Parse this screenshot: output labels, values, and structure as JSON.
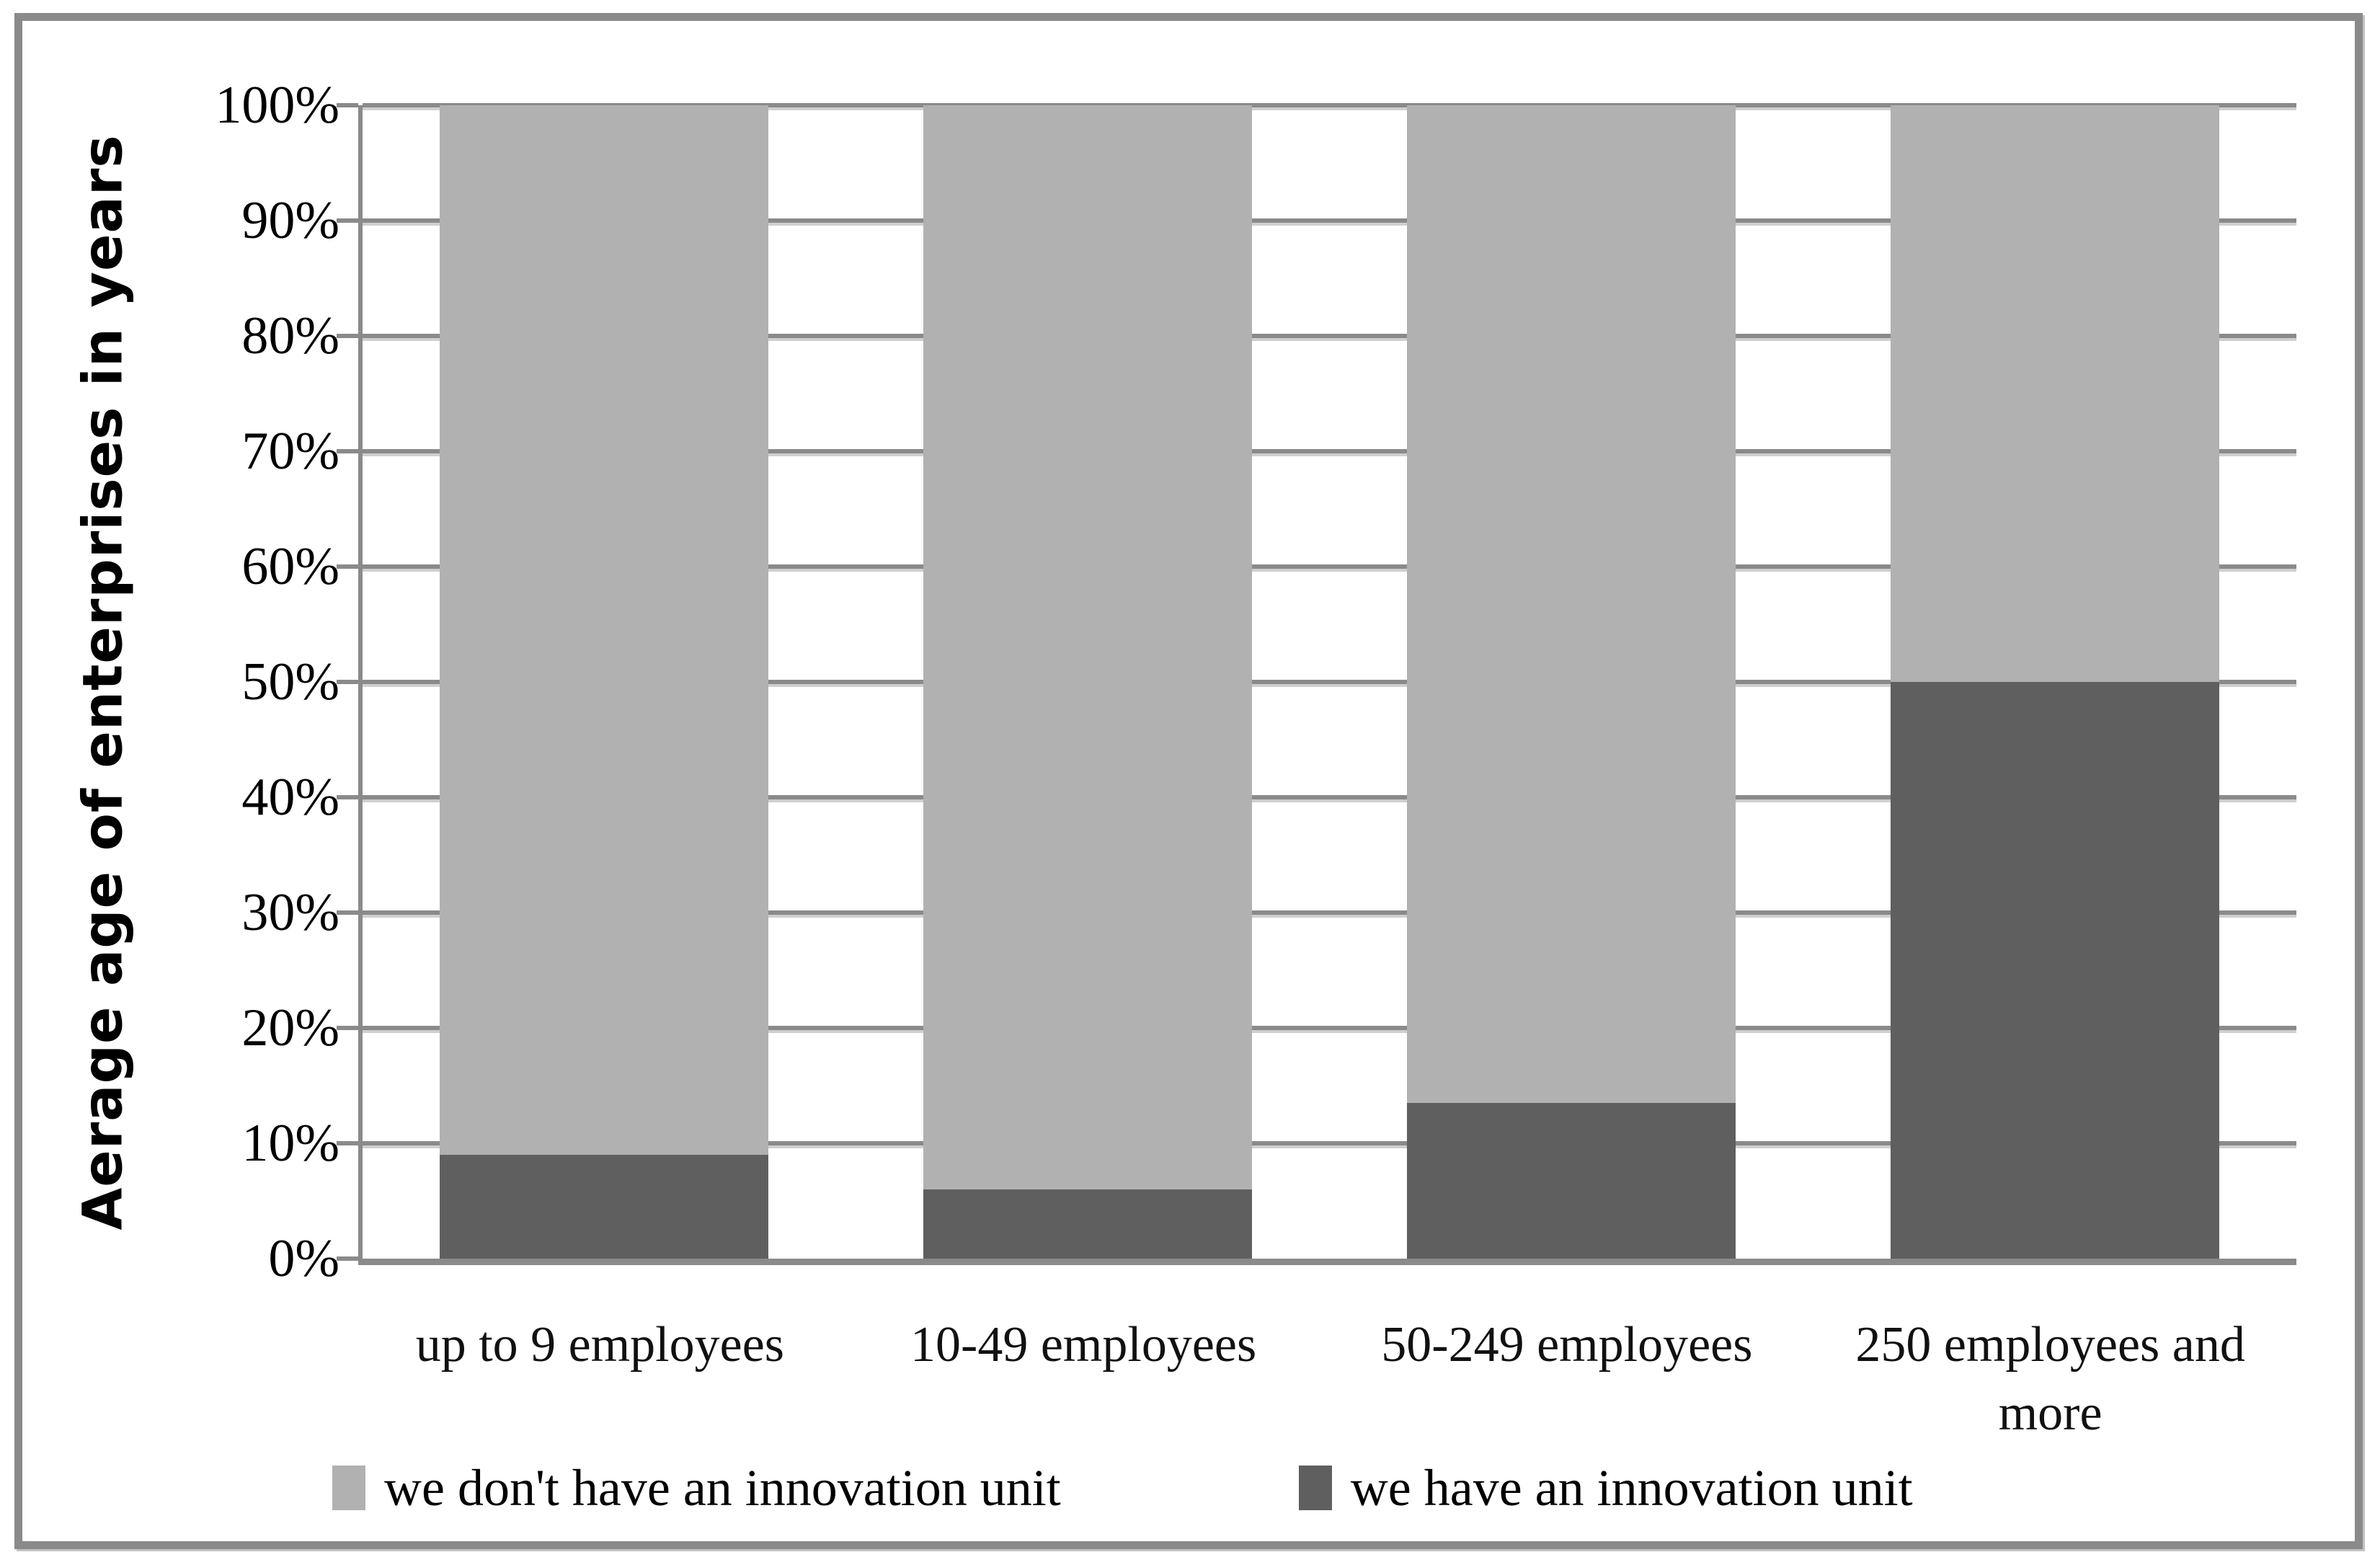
{
  "chart_data": {
    "type": "bar",
    "stacked": true,
    "orientation": "vertical",
    "title": "",
    "xlabel": "",
    "ylabel": "Aerage age of enterprises in years",
    "categories": [
      "up to 9 employees",
      "10-49 employees",
      "50-249 employees",
      "250 employees and more"
    ],
    "series": [
      {
        "name": "we have an innovation unit",
        "color": "#5f5f5f",
        "values": [
          9,
          6,
          13.5,
          50
        ]
      },
      {
        "name": "we don't have an innovation unit",
        "color": "#b1b1b1",
        "values": [
          91,
          94,
          86.5,
          50
        ]
      }
    ],
    "ylim": [
      0,
      100
    ],
    "y_tick_step": 10,
    "y_tick_suffix": "%",
    "y_tick_labels": [
      "0%",
      "10%",
      "20%",
      "30%",
      "40%",
      "50%",
      "60%",
      "70%",
      "80%",
      "90%",
      "100%"
    ],
    "grid": true,
    "legend_position": "bottom",
    "legend_order": [
      "we don't have an innovation unit",
      "we have an innovation unit"
    ]
  },
  "colors": {
    "bar_light": "#b1b1b1",
    "bar_dark": "#5f5f5f",
    "gridline": "#8a8a8a",
    "gridline_shadow": "#cfcfcf",
    "axis": "#8a8a8a",
    "frame_border": "#8a8a8a",
    "background": "#ffffff",
    "text": "#000000"
  }
}
